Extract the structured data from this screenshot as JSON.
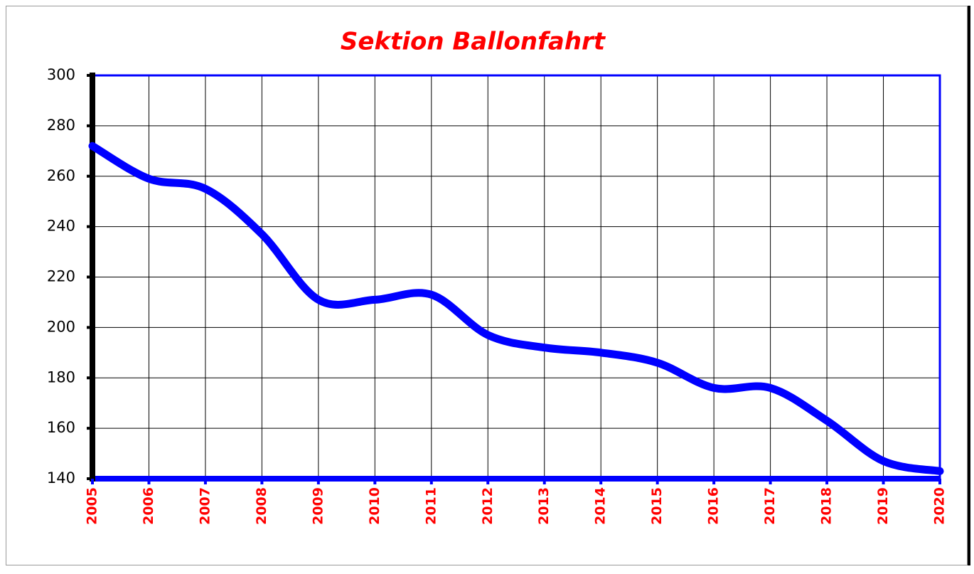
{
  "chart_data": {
    "type": "line",
    "title": "Sektion Ballonfahrt",
    "categories": [
      "2005",
      "2006",
      "2007",
      "2008",
      "2009",
      "2010",
      "2011",
      "2012",
      "2013",
      "2014",
      "2015",
      "2016",
      "2017",
      "2018",
      "2019",
      "2020"
    ],
    "series": [
      {
        "name": "Sektion Ballonfahrt",
        "color": "#0000ff",
        "values": [
          272,
          259,
          255,
          237,
          211,
          211,
          213,
          197,
          192,
          190,
          186,
          176,
          176,
          163,
          147,
          143
        ]
      }
    ],
    "ylim": [
      140,
      300
    ],
    "yticks": [
      140,
      160,
      180,
      200,
      220,
      240,
      260,
      280,
      300
    ],
    "grid": true,
    "smooth": true
  }
}
